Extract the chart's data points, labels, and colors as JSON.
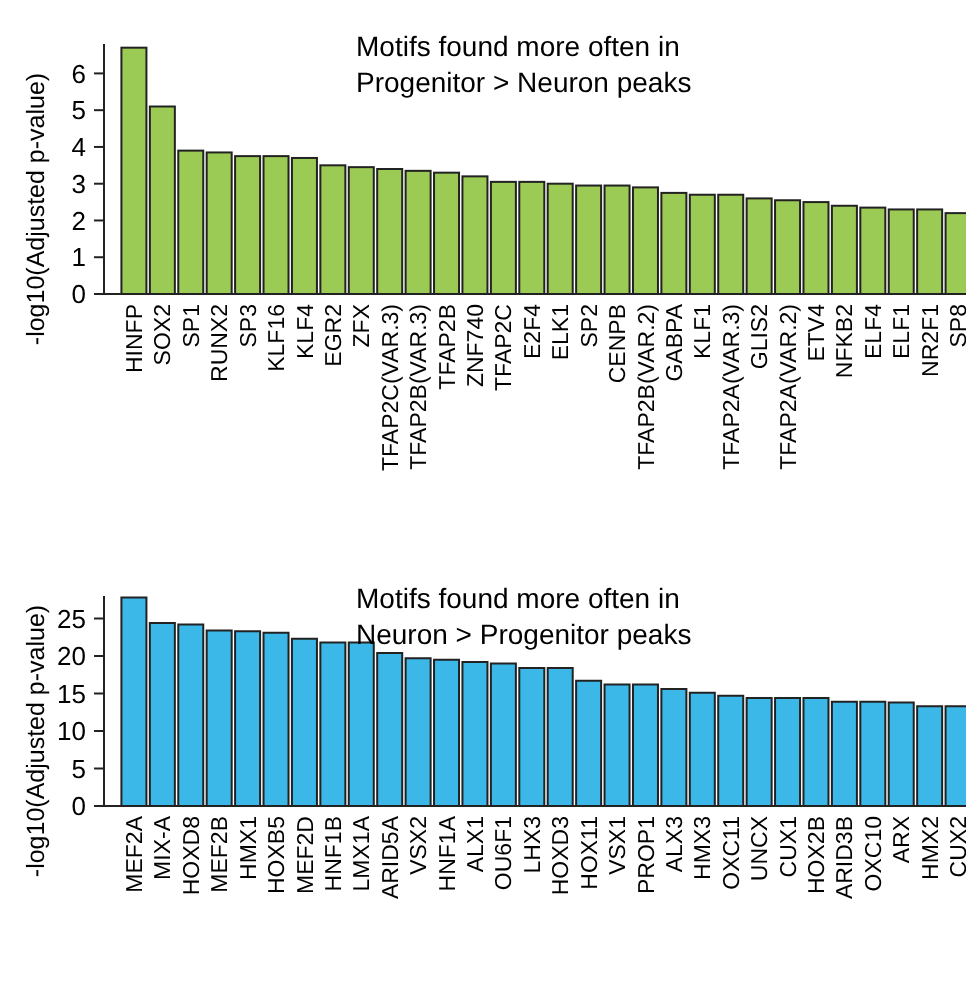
{
  "chart_data": [
    {
      "type": "bar",
      "title": "Motifs found more often in\nProgenitor > Neuron peaks",
      "ylabel": "-log10(Adjusted p-value)",
      "color": "#9ccb55",
      "ylim": [
        0,
        6.8
      ],
      "yticks": [
        0,
        1,
        2,
        3,
        4,
        5,
        6
      ],
      "grid": false,
      "categories": [
        "HINFP",
        "SOX2",
        "SP1",
        "RUNX2",
        "SP3",
        "KLF16",
        "KLF4",
        "EGR2",
        "ZFX",
        "TFAP2C(VAR.3)",
        "TFAP2B(VAR.3)",
        "TFAP2B",
        "ZNF740",
        "TFAP2C",
        "E2F4",
        "ELK1",
        "SP2",
        "CENPB",
        "TFAP2B(VAR.2)",
        "GABPA",
        "KLF1",
        "TFAP2A(VAR.3)",
        "GLIS2",
        "TFAP2A(VAR.2)",
        "ETV4",
        "NFKB2",
        "ELF4",
        "ELF1",
        "NR2F1",
        "SP8"
      ],
      "values": [
        6.7,
        5.1,
        3.9,
        3.85,
        3.75,
        3.75,
        3.7,
        3.5,
        3.45,
        3.4,
        3.35,
        3.3,
        3.2,
        3.05,
        3.05,
        3.0,
        2.95,
        2.95,
        2.9,
        2.75,
        2.7,
        2.7,
        2.6,
        2.55,
        2.5,
        2.4,
        2.35,
        2.3,
        2.3,
        2.2
      ]
    },
    {
      "type": "bar",
      "title": "Motifs found more often in\nNeuron > Progenitor peaks",
      "ylabel": "-log10(Adjusted p-value)",
      "color": "#3bb8e8",
      "ylim": [
        0,
        28
      ],
      "yticks": [
        0,
        5,
        10,
        15,
        20,
        25
      ],
      "grid": false,
      "categories": [
        "MEF2A",
        "MIX-A",
        "HOXD8",
        "MEF2B",
        "HMX1",
        "HOXB5",
        "MEF2D",
        "HNF1B",
        "LMX1A",
        "ARID5A",
        "VSX2",
        "HNF1A",
        "ALX1",
        "OU6F1",
        "LHX3",
        "HOXD3",
        "HOX11",
        "VSX1",
        "PROP1",
        "ALX3",
        "HMX3",
        "OXC11",
        "UNCX",
        "CUX1",
        "HOX2B",
        "ARID3B",
        "OXC10",
        "ARX",
        "HMX2",
        "CUX2"
      ],
      "values": [
        27.8,
        24.4,
        24.2,
        23.4,
        23.3,
        23.1,
        22.3,
        21.8,
        21.8,
        20.4,
        19.7,
        19.5,
        19.2,
        19.0,
        18.4,
        18.4,
        16.7,
        16.2,
        16.2,
        15.6,
        15.1,
        14.7,
        14.4,
        14.4,
        14.4,
        13.9,
        13.9,
        13.8,
        13.3,
        13.3
      ]
    }
  ]
}
